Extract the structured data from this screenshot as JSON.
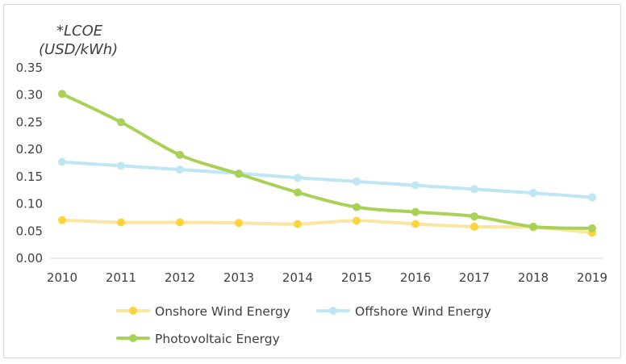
{
  "chart_data": {
    "type": "line",
    "ylabel_lines": [
      "*LCOE",
      "(USD/kWh)"
    ],
    "xlabel": "",
    "x": [
      "2010",
      "2011",
      "2012",
      "2013",
      "2014",
      "2015",
      "2016",
      "2017",
      "2018",
      "2019"
    ],
    "ylim": [
      0,
      0.35
    ],
    "yticks": [
      "0.00",
      "0.05",
      "0.10",
      "0.15",
      "0.20",
      "0.25",
      "0.30",
      "0.35"
    ],
    "grid": false,
    "legend_position": "bottom",
    "series": [
      {
        "name": "Onshore Wind Energy",
        "color": "#ffd43b",
        "line_color": "#fae5a1",
        "values": [
          0.07,
          0.066,
          0.066,
          0.065,
          0.063,
          0.069,
          0.063,
          0.058,
          0.057,
          0.047
        ]
      },
      {
        "name": "Offshore Wind Energy",
        "color": "#bfe6f3",
        "line_color": "#bfe6f3",
        "values": [
          0.177,
          0.17,
          0.163,
          0.156,
          0.148,
          0.141,
          0.134,
          0.127,
          0.12,
          0.112
        ]
      },
      {
        "name": "Photovoltaic Energy",
        "color": "#a9d158",
        "line_color": "#a9d158",
        "values": [
          0.302,
          0.25,
          0.19,
          0.155,
          0.121,
          0.094,
          0.085,
          0.077,
          0.058,
          0.055
        ]
      }
    ]
  }
}
